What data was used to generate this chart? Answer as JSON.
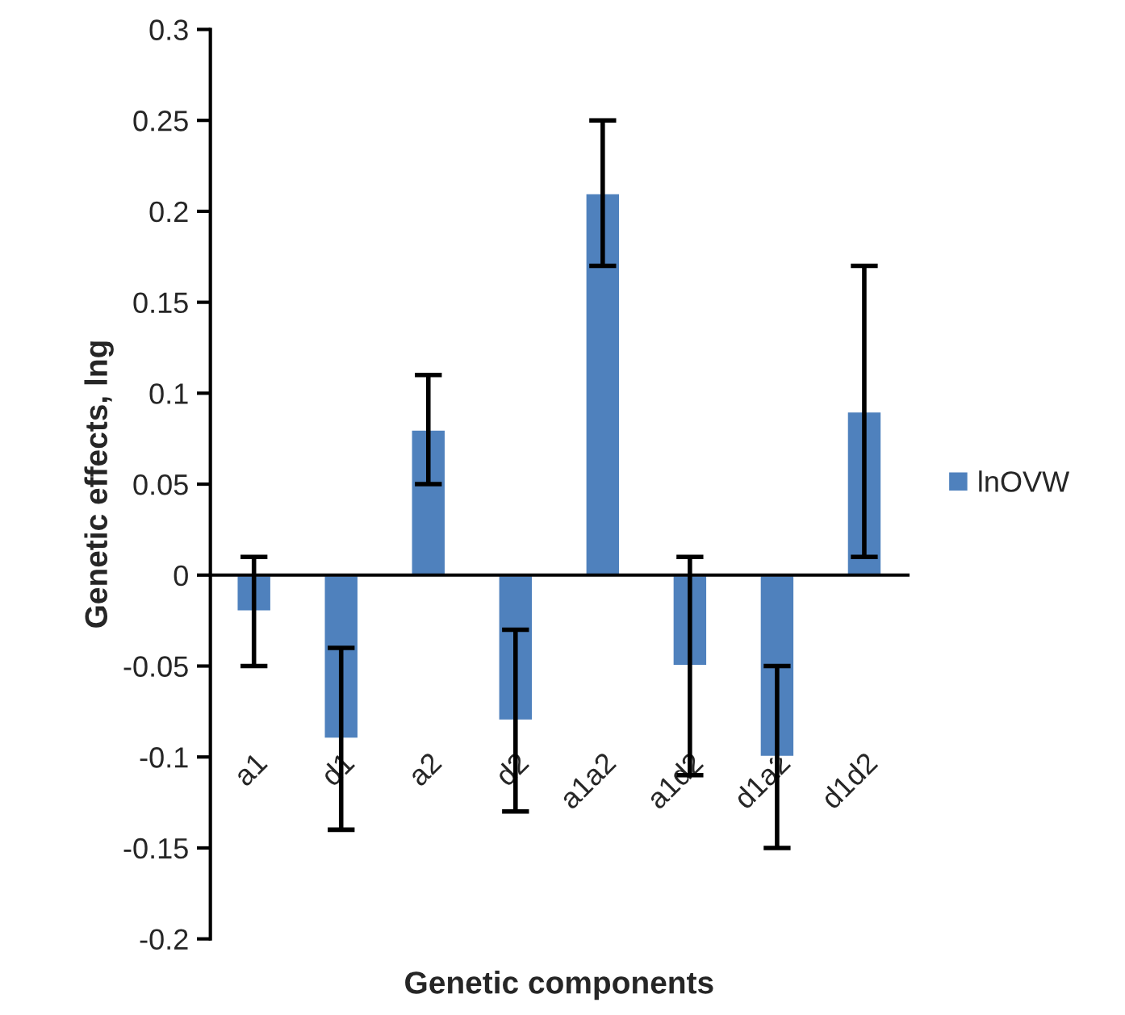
{
  "chart_data": {
    "type": "bar",
    "xlabel": "Genetic components",
    "ylabel": "Genetic effects, lng",
    "categories": [
      "a1",
      "d1",
      "a2",
      "d2",
      "a1a2",
      "a1d2",
      "d1a2",
      "d1d2"
    ],
    "series": [
      {
        "name": "lnOVW",
        "color": "#4f81bd",
        "values": [
          -0.02,
          -0.09,
          0.08,
          -0.08,
          0.21,
          -0.05,
          -0.1,
          0.09
        ],
        "errors": [
          0.03,
          0.05,
          0.03,
          0.05,
          0.04,
          0.06,
          0.05,
          0.08
        ]
      }
    ],
    "ylim": [
      -0.2,
      0.3
    ],
    "yticks": [
      -0.2,
      -0.15,
      -0.1,
      -0.05,
      0,
      0.05,
      0.1,
      0.15,
      0.2,
      0.25,
      0.3
    ],
    "legend": "right"
  }
}
